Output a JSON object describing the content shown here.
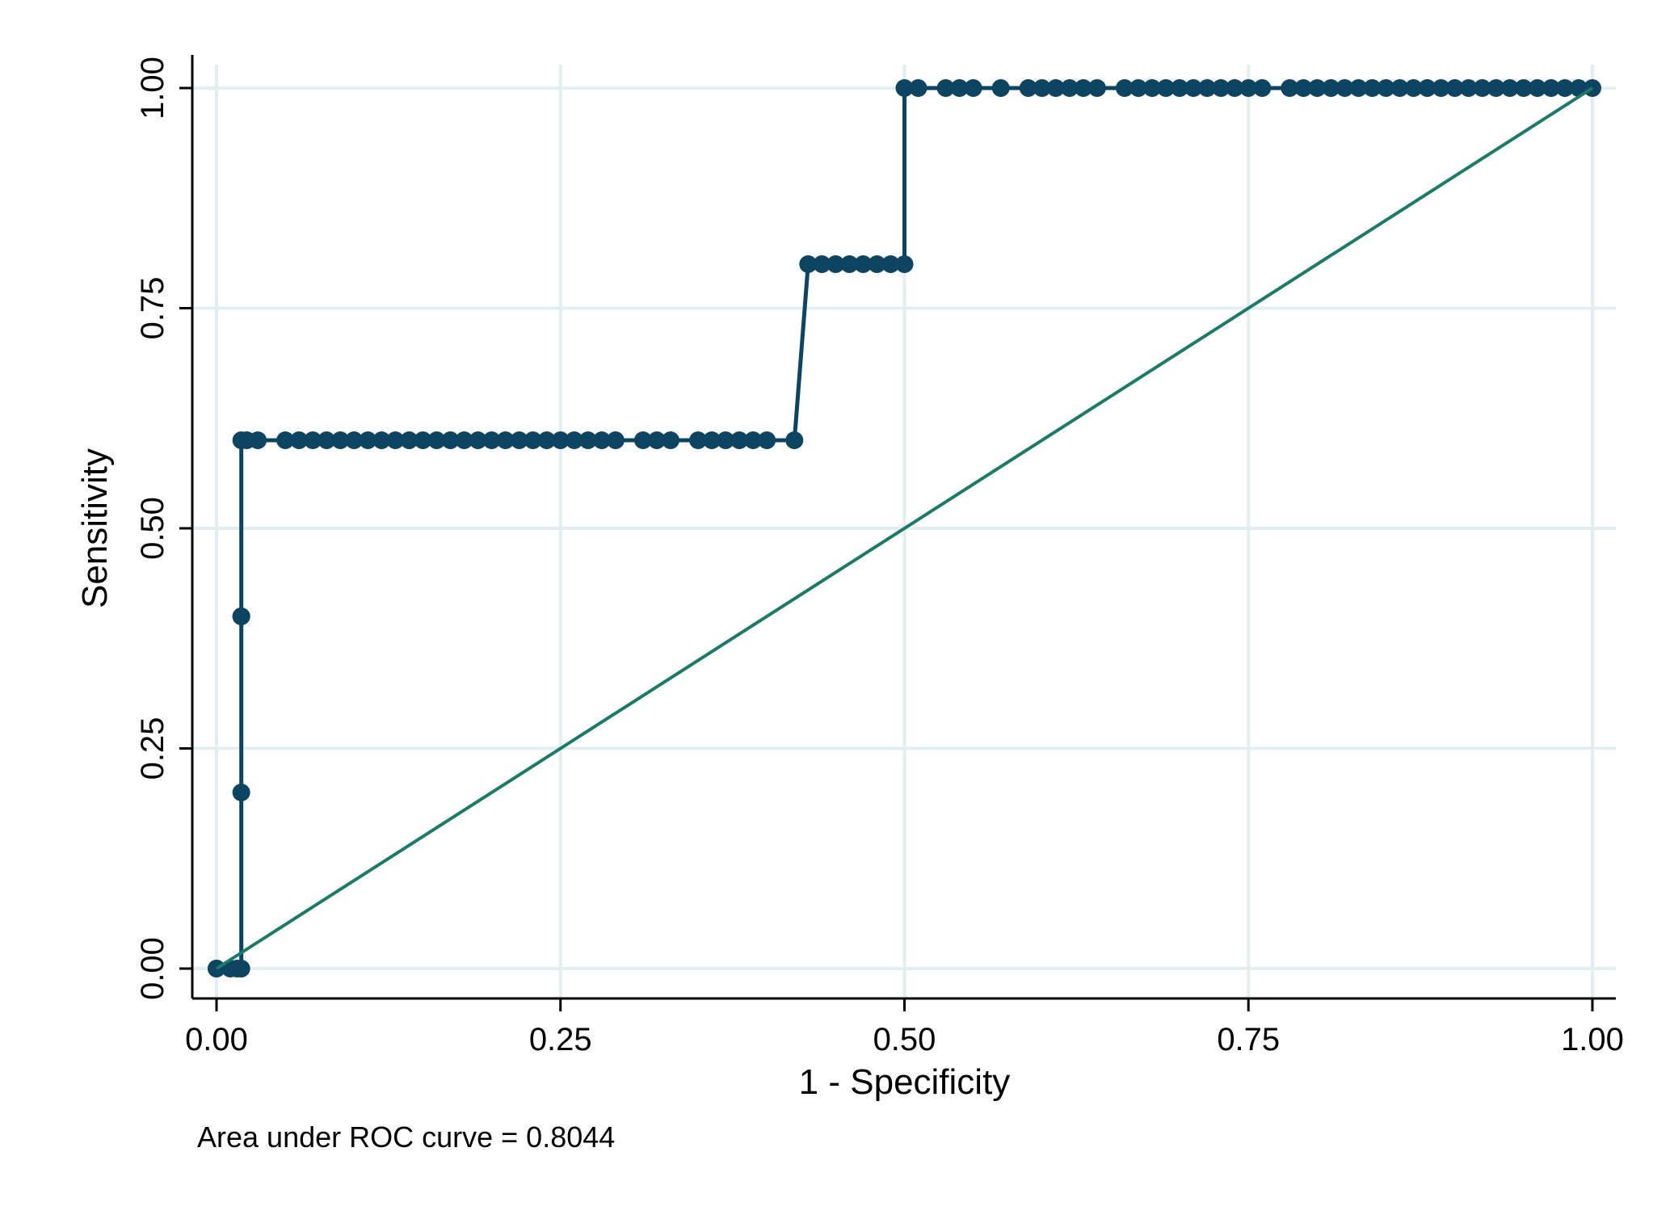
{
  "chart_data": {
    "type": "line",
    "xlabel": "1 - Specificity",
    "ylabel": "Sensitivity",
    "xlim": [
      0,
      1
    ],
    "ylim": [
      0,
      1
    ],
    "x_ticks": [
      "0.00",
      "0.25",
      "0.50",
      "0.75",
      "1.00"
    ],
    "y_ticks": [
      "0.00",
      "0.25",
      "0.50",
      "0.75",
      "1.00"
    ],
    "grid": true,
    "note": "Area under ROC curve = 0.8044",
    "series": [
      {
        "kind": "roc",
        "color": "#0d4461",
        "markers": true,
        "x": [
          0.0,
          0.0,
          0.01,
          0.015,
          0.018,
          0.018,
          0.018,
          0.018,
          0.018,
          0.022,
          0.03,
          0.05,
          0.06,
          0.07,
          0.08,
          0.09,
          0.1,
          0.11,
          0.12,
          0.13,
          0.14,
          0.15,
          0.16,
          0.17,
          0.18,
          0.19,
          0.2,
          0.21,
          0.22,
          0.23,
          0.24,
          0.25,
          0.26,
          0.27,
          0.28,
          0.29,
          0.31,
          0.32,
          0.33,
          0.35,
          0.36,
          0.37,
          0.38,
          0.39,
          0.4,
          0.42,
          0.43,
          0.44,
          0.45,
          0.46,
          0.47,
          0.48,
          0.49,
          0.5,
          0.5,
          0.51,
          0.53,
          0.54,
          0.55,
          0.57,
          0.59,
          0.6,
          0.61,
          0.62,
          0.63,
          0.64,
          0.66,
          0.67,
          0.68,
          0.69,
          0.7,
          0.71,
          0.72,
          0.73,
          0.74,
          0.75,
          0.76,
          0.78,
          0.79,
          0.8,
          0.81,
          0.82,
          0.83,
          0.84,
          0.85,
          0.86,
          0.87,
          0.88,
          0.89,
          0.9,
          0.91,
          0.92,
          0.93,
          0.94,
          0.95,
          0.96,
          0.97,
          0.98,
          0.99,
          1.0
        ],
        "y": [
          0.0,
          0.0,
          0.0,
          0.0,
          0.0,
          0.2,
          0.4,
          0.4,
          0.6,
          0.6,
          0.6,
          0.6,
          0.6,
          0.6,
          0.6,
          0.6,
          0.6,
          0.6,
          0.6,
          0.6,
          0.6,
          0.6,
          0.6,
          0.6,
          0.6,
          0.6,
          0.6,
          0.6,
          0.6,
          0.6,
          0.6,
          0.6,
          0.6,
          0.6,
          0.6,
          0.6,
          0.6,
          0.6,
          0.6,
          0.6,
          0.6,
          0.6,
          0.6,
          0.6,
          0.6,
          0.6,
          0.8,
          0.8,
          0.8,
          0.8,
          0.8,
          0.8,
          0.8,
          0.8,
          1.0,
          1.0,
          1.0,
          1.0,
          1.0,
          1.0,
          1.0,
          1.0,
          1.0,
          1.0,
          1.0,
          1.0,
          1.0,
          1.0,
          1.0,
          1.0,
          1.0,
          1.0,
          1.0,
          1.0,
          1.0,
          1.0,
          1.0,
          1.0,
          1.0,
          1.0,
          1.0,
          1.0,
          1.0,
          1.0,
          1.0,
          1.0,
          1.0,
          1.0,
          1.0,
          1.0,
          1.0,
          1.0,
          1.0,
          1.0,
          1.0,
          1.0,
          1.0,
          1.0,
          1.0,
          1.0
        ]
      },
      {
        "kind": "reference",
        "color": "#1b7a6a",
        "markers": false,
        "x": [
          0,
          1
        ],
        "y": [
          0,
          1
        ]
      }
    ]
  },
  "colors": {
    "grid": "#e3efef",
    "axis": "#000000",
    "roc": "#0d4461",
    "reference": "#1b7a6a"
  }
}
